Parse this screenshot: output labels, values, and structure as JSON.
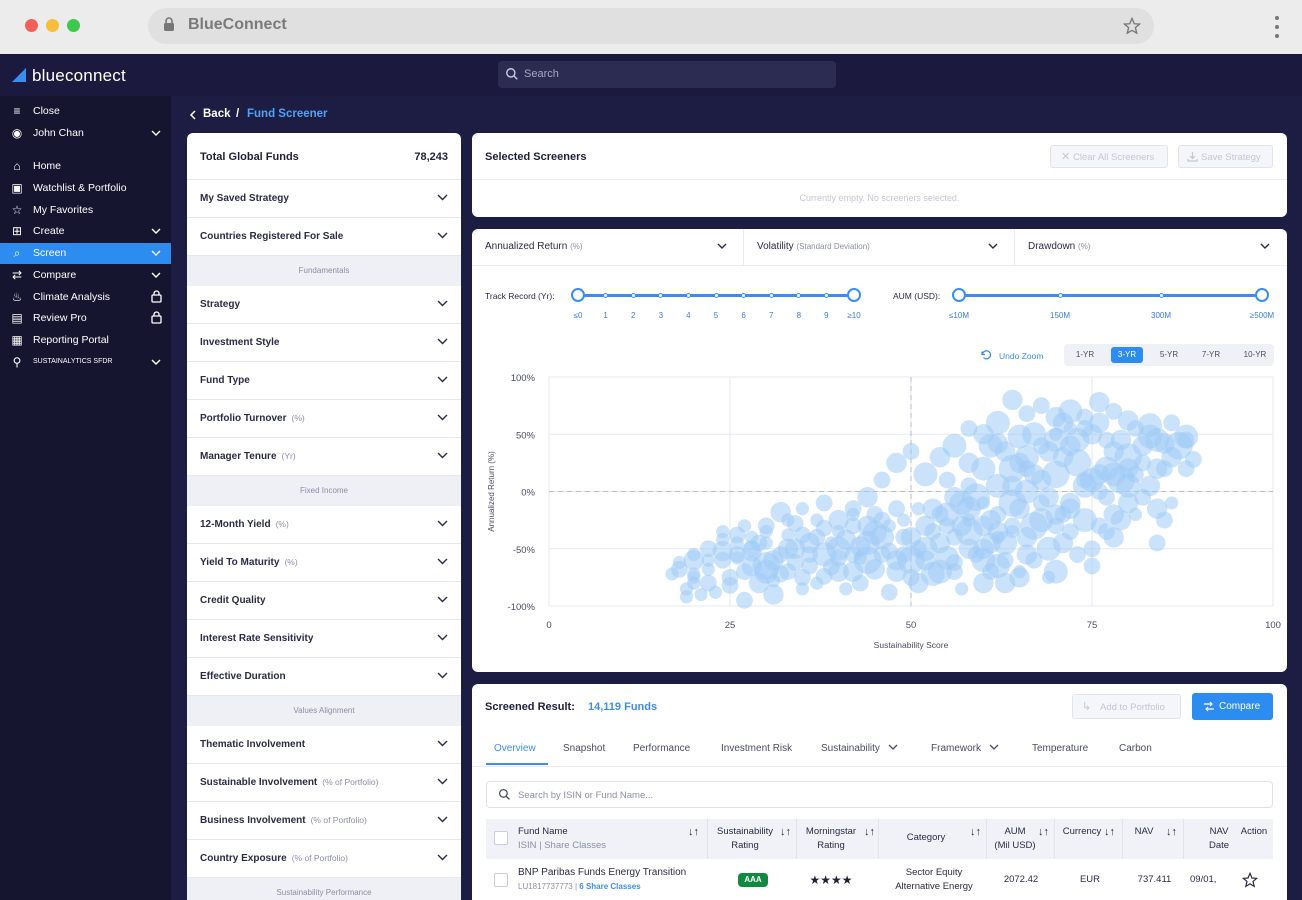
{
  "browser": {
    "title": "BlueConnect"
  },
  "app": {
    "logo": "blueconnect",
    "search_placeholder": "Search"
  },
  "sidebar": {
    "items": [
      {
        "label": "Close",
        "icon": "collapse-icon"
      },
      {
        "label": "John Chan",
        "icon": "user-icon"
      },
      {
        "label": "Home",
        "icon": "home-icon"
      },
      {
        "label": "Watchlist & Portfolio",
        "icon": "watchlist-icon"
      },
      {
        "label": "My Favorites",
        "icon": "star-icon"
      },
      {
        "label": "Create",
        "icon": "create-icon"
      },
      {
        "label": "Screen",
        "icon": "screen-search-icon"
      },
      {
        "label": "Compare",
        "icon": "compare-icon"
      },
      {
        "label": "Climate Analysis",
        "icon": "climate-icon"
      },
      {
        "label": "Review Pro",
        "icon": "review-icon"
      },
      {
        "label": "Reporting Portal",
        "icon": "report-icon"
      },
      {
        "label": "SUSTAINALYTICS SFDR",
        "icon": "badge-icon"
      }
    ]
  },
  "breadcrumb": {
    "back": "Back",
    "sep": "/",
    "current": "Fund Screener"
  },
  "filters": {
    "total_label": "Total Global Funds",
    "total_value": "78,243",
    "saved": "My Saved Strategy",
    "countries": "Countries Registered For Sale",
    "sections": {
      "fundamentals": "Fundamentals",
      "fixed_income": "Fixed Income",
      "values": "Values Alignment",
      "sustainability": "Sustainability Performance"
    },
    "strategy": "Strategy",
    "investment_style": "Investment Style",
    "fund_type": "Fund Type",
    "portfolio_turnover": "Portfolio Turnover",
    "portfolio_turnover_unit": "(%)",
    "manager_tenure": "Manager Tenure",
    "manager_tenure_unit": "(Yr)",
    "yield12": "12-Month Yield",
    "yield12_unit": "(%)",
    "ytm": "Yield To Maturity",
    "ytm_unit": "(%)",
    "credit_quality": "Credit Quality",
    "irs": "Interest Rate Sensitivity",
    "eff_duration": "Effective Duration",
    "thematic": "Thematic Involvement",
    "sustainable_inv": "Sustainable Involvement",
    "sustainable_inv_unit": "(% of Portfolio)",
    "business_inv": "Business Involvement",
    "business_inv_unit": "(% of Portfolio)",
    "country_exp": "Country Exposure",
    "country_exp_unit": "(% of Portfolio)"
  },
  "screeners": {
    "title": "Selected Screeners",
    "clear": "Clear All Screeners",
    "save": "Save Strategy",
    "empty": "Currently empty. No screeners selected."
  },
  "chart_panel": {
    "dd1": "Annualized Return",
    "dd1_unit": "(%)",
    "dd2": "Volatility",
    "dd2_unit": "(Standard Deviation)",
    "dd3": "Drawdown",
    "dd3_unit": "(%)",
    "track_label": "Track Record (Yr):",
    "track_ticks": [
      "≤0",
      "1",
      "2",
      "3",
      "4",
      "5",
      "6",
      "7",
      "8",
      "9",
      "≥10"
    ],
    "track_range": [
      0,
      10
    ],
    "aum_label": "AUM (USD):",
    "aum_ticks": [
      "≤10M",
      "150M",
      "300M",
      "≥500M"
    ],
    "aum_range": [
      0,
      3
    ],
    "undo_zoom": "Undo Zoom",
    "periods": [
      "1-YR",
      "3-YR",
      "5-YR",
      "7-YR",
      "10-YR"
    ],
    "period_active": "3-YR"
  },
  "chart_data": {
    "type": "scatter",
    "xlabel": "Sustainability Score",
    "ylabel": "Annualized Return (%)",
    "xlim": [
      0,
      100
    ],
    "ylim": [
      -100,
      100
    ],
    "x_ticks": [
      "0",
      "25",
      "50",
      "75",
      "100"
    ],
    "y_ticks": [
      "100%",
      "50%",
      "0%",
      "-50%",
      "-100%"
    ],
    "reference_lines": {
      "x": 50,
      "y": 0
    },
    "points": [
      [
        28,
        -52,
        4
      ],
      [
        30,
        -65,
        6
      ],
      [
        32,
        -72,
        3
      ],
      [
        29,
        -80,
        4
      ],
      [
        31,
        -90,
        4
      ],
      [
        26,
        -58,
        2
      ],
      [
        24,
        -60,
        3
      ],
      [
        22,
        -68,
        2
      ],
      [
        20,
        -75,
        2
      ],
      [
        18,
        -62,
        2
      ],
      [
        23,
        -88,
        2
      ],
      [
        27,
        -95,
        3
      ],
      [
        25,
        -82,
        3
      ],
      [
        33,
        -50,
        4
      ],
      [
        34,
        -62,
        3
      ],
      [
        35,
        -85,
        2
      ],
      [
        38,
        -74,
        3
      ],
      [
        36,
        -55,
        3
      ],
      [
        37,
        -40,
        3
      ],
      [
        40,
        -58,
        3
      ],
      [
        42,
        -70,
        4
      ],
      [
        44,
        -60,
        6
      ],
      [
        43,
        -48,
        4
      ],
      [
        45,
        -36,
        5
      ],
      [
        47,
        -52,
        3
      ],
      [
        46,
        -25,
        3
      ],
      [
        48,
        -70,
        4
      ],
      [
        49,
        -40,
        3
      ],
      [
        50,
        -60,
        6
      ],
      [
        51,
        -50,
        3
      ],
      [
        52,
        -30,
        4
      ],
      [
        53,
        -72,
        5
      ],
      [
        54,
        -45,
        4
      ],
      [
        55,
        -20,
        5
      ],
      [
        56,
        -62,
        3
      ],
      [
        57,
        -10,
        5
      ],
      [
        58,
        -35,
        6
      ],
      [
        59,
        -55,
        3
      ],
      [
        60,
        -80,
        4
      ],
      [
        61,
        -25,
        4
      ],
      [
        62,
        5,
        5
      ],
      [
        63,
        -45,
        5
      ],
      [
        64,
        20,
        6
      ],
      [
        65,
        -15,
        4
      ],
      [
        66,
        30,
        5
      ],
      [
        67,
        -30,
        6
      ],
      [
        68,
        10,
        4
      ],
      [
        69,
        -50,
        5
      ],
      [
        70,
        45,
        5
      ],
      [
        71,
        -20,
        3
      ],
      [
        72,
        40,
        4
      ],
      [
        73,
        25,
        6
      ],
      [
        74,
        55,
        3
      ],
      [
        75,
        10,
        5
      ],
      [
        76,
        60,
        4
      ],
      [
        77,
        -5,
        3
      ],
      [
        78,
        35,
        4
      ],
      [
        80,
        30,
        6
      ],
      [
        82,
        40,
        4
      ],
      [
        84,
        45,
        5
      ],
      [
        85,
        20,
        3
      ],
      [
        80,
        -10,
        4
      ],
      [
        78,
        -40,
        4
      ],
      [
        75,
        -65,
        3
      ],
      [
        70,
        -70,
        5
      ],
      [
        65,
        -75,
        4
      ],
      [
        62,
        -65,
        5
      ],
      [
        60,
        -50,
        4
      ],
      [
        58,
        25,
        4
      ],
      [
        56,
        40,
        5
      ],
      [
        55,
        10,
        3
      ],
      [
        54,
        30,
        4
      ],
      [
        52,
        15,
        5
      ],
      [
        50,
        35,
        3
      ],
      [
        48,
        25,
        4
      ],
      [
        46,
        10,
        3
      ],
      [
        44,
        -5,
        4
      ],
      [
        42,
        -15,
        3
      ],
      [
        40,
        -25,
        4
      ],
      [
        38,
        -32,
        3
      ],
      [
        36,
        -45,
        4
      ],
      [
        34,
        -28,
        3
      ],
      [
        32,
        -18,
        4
      ],
      [
        30,
        -30,
        3
      ],
      [
        28,
        -50,
        3
      ],
      [
        26,
        -38,
        3
      ],
      [
        25,
        -75,
        3
      ],
      [
        22,
        -80,
        3
      ],
      [
        20,
        -55,
        2
      ],
      [
        21,
        -90,
        2
      ],
      [
        19,
        -85,
        2
      ],
      [
        17,
        -72,
        2
      ],
      [
        24,
        -42,
        2
      ],
      [
        27,
        -70,
        3
      ],
      [
        29,
        -45,
        3
      ],
      [
        31,
        -60,
        4
      ],
      [
        33,
        -70,
        3
      ],
      [
        35,
        -38,
        3
      ],
      [
        37,
        -80,
        2
      ],
      [
        39,
        -66,
        3
      ],
      [
        41,
        -42,
        4
      ],
      [
        43,
        -80,
        3
      ],
      [
        45,
        -68,
        4
      ],
      [
        47,
        -88,
        3
      ],
      [
        49,
        -55,
        3
      ],
      [
        51,
        -80,
        4
      ],
      [
        53,
        -15,
        4
      ],
      [
        55,
        -58,
        5
      ],
      [
        57,
        -30,
        4
      ],
      [
        59,
        -5,
        6
      ],
      [
        61,
        -45,
        4
      ],
      [
        63,
        -60,
        3
      ],
      [
        64,
        -10,
        6
      ],
      [
        66,
        -55,
        4
      ],
      [
        67,
        15,
        4
      ],
      [
        69,
        -5,
        4
      ],
      [
        70,
        15,
        6
      ],
      [
        71,
        60,
        4
      ],
      [
        72,
        -35,
        3
      ],
      [
        74,
        -25,
        5
      ],
      [
        76,
        -30,
        3
      ],
      [
        77,
        20,
        5
      ],
      [
        79,
        10,
        6
      ],
      [
        81,
        15,
        3
      ],
      [
        83,
        5,
        4
      ],
      [
        85,
        -25,
        3
      ],
      [
        68,
        75,
        3
      ],
      [
        66,
        68,
        3
      ],
      [
        64,
        80,
        4
      ],
      [
        62,
        60,
        5
      ],
      [
        60,
        50,
        4
      ],
      [
        58,
        55,
        3
      ],
      [
        61,
        40,
        5
      ],
      [
        63,
        35,
        4
      ],
      [
        65,
        25,
        4
      ],
      [
        67,
        50,
        5
      ],
      [
        69,
        35,
        4
      ],
      [
        71,
        30,
        4
      ],
      [
        73,
        45,
        5
      ],
      [
        75,
        50,
        4
      ],
      [
        77,
        45,
        3
      ],
      [
        79,
        45,
        4
      ],
      [
        81,
        55,
        3
      ],
      [
        83,
        48,
        5
      ],
      [
        85,
        42,
        4
      ],
      [
        87,
        40,
        6
      ],
      [
        88,
        45,
        3
      ],
      [
        88,
        20,
        3
      ],
      [
        86,
        30,
        4
      ],
      [
        84,
        20,
        4
      ],
      [
        82,
        25,
        3
      ],
      [
        80,
        20,
        4
      ],
      [
        78,
        15,
        5
      ],
      [
        76,
        15,
        4
      ],
      [
        74,
        10,
        3
      ],
      [
        72,
        -15,
        4
      ],
      [
        70,
        -20,
        4
      ],
      [
        68,
        -10,
        3
      ],
      [
        66,
        0,
        5
      ],
      [
        64,
        5,
        4
      ],
      [
        62,
        -20,
        3
      ],
      [
        60,
        -30,
        4
      ],
      [
        58,
        -15,
        5
      ],
      [
        56,
        -5,
        4
      ],
      [
        54,
        -20,
        3
      ],
      [
        52,
        -50,
        5
      ],
      [
        50,
        -40,
        4
      ],
      [
        48,
        -15,
        3
      ],
      [
        46,
        -40,
        5
      ],
      [
        44,
        -30,
        4
      ],
      [
        42,
        -30,
        3
      ],
      [
        40,
        -50,
        5
      ],
      [
        38,
        -10,
        3
      ],
      [
        20,
        -60,
        4
      ],
      [
        22,
        -50,
        3
      ],
      [
        24,
        -52,
        4
      ],
      [
        26,
        -55,
        3
      ],
      [
        28,
        -65,
        4
      ],
      [
        30,
        -70,
        5
      ],
      [
        32,
        -55,
        3
      ],
      [
        34,
        -50,
        4
      ],
      [
        36,
        -65,
        3
      ],
      [
        38,
        -55,
        5
      ],
      [
        40,
        -70,
        4
      ],
      [
        42,
        -55,
        3
      ],
      [
        44,
        -45,
        5
      ],
      [
        46,
        -55,
        3
      ],
      [
        48,
        -60,
        4
      ],
      [
        50,
        -75,
        3
      ],
      [
        52,
        -60,
        4
      ],
      [
        54,
        -70,
        5
      ],
      [
        56,
        -40,
        3
      ],
      [
        58,
        -50,
        4
      ],
      [
        60,
        -60,
        5
      ],
      [
        62,
        -35,
        4
      ],
      [
        64,
        -30,
        3
      ],
      [
        66,
        -40,
        4
      ],
      [
        68,
        -25,
        5
      ],
      [
        70,
        -30,
        3
      ],
      [
        72,
        -10,
        4
      ],
      [
        74,
        5,
        5
      ],
      [
        76,
        0,
        3
      ],
      [
        78,
        -20,
        4
      ],
      [
        80,
        5,
        5
      ],
      [
        82,
        -5,
        3
      ],
      [
        84,
        -15,
        4
      ],
      [
        70,
        65,
        4
      ],
      [
        72,
        70,
        5
      ],
      [
        74,
        65,
        3
      ],
      [
        76,
        78,
        4
      ],
      [
        78,
        70,
        3
      ],
      [
        80,
        62,
        4
      ],
      [
        83,
        58,
        5
      ],
      [
        65,
        48,
        5
      ],
      [
        62,
        42,
        4
      ],
      [
        60,
        20,
        5
      ],
      [
        58,
        5,
        3
      ],
      [
        56,
        -70,
        3
      ],
      [
        63,
        -80,
        4
      ],
      [
        67,
        -60,
        3
      ],
      [
        71,
        -45,
        4
      ],
      [
        75,
        -50,
        3
      ],
      [
        79,
        -25,
        4
      ],
      [
        86,
        60,
        3
      ],
      [
        88,
        48,
        5
      ],
      [
        89,
        28,
        3
      ],
      [
        40,
        -35,
        2
      ],
      [
        42,
        -20,
        2
      ],
      [
        27,
        -30,
        2
      ],
      [
        20,
        -72,
        2
      ],
      [
        18,
        -68,
        3
      ],
      [
        30,
        -45,
        2
      ],
      [
        33,
        -38,
        2
      ],
      [
        35,
        -75,
        3
      ],
      [
        45,
        -20,
        3
      ],
      [
        57,
        -85,
        2
      ],
      [
        61,
        -70,
        3
      ],
      [
        65,
        -70,
        2
      ],
      [
        69,
        -75,
        2
      ],
      [
        73,
        -55,
        3
      ],
      [
        77,
        -35,
        3
      ],
      [
        81,
        -20,
        2
      ],
      [
        84,
        -45,
        3
      ],
      [
        86,
        -10,
        2
      ],
      [
        70,
        50,
        2
      ],
      [
        72,
        55,
        2
      ],
      [
        68,
        40,
        3
      ],
      [
        66,
        20,
        3
      ],
      [
        64,
        -35,
        2
      ],
      [
        62,
        -40,
        2
      ],
      [
        60,
        -10,
        2
      ],
      [
        58,
        -25,
        2
      ],
      [
        55,
        -30,
        3
      ],
      [
        53,
        -35,
        3
      ],
      [
        51,
        -15,
        2
      ],
      [
        49,
        -25,
        2
      ],
      [
        47,
        -30,
        2
      ],
      [
        43,
        -58,
        2
      ],
      [
        41,
        -85,
        2
      ],
      [
        39,
        -45,
        2
      ],
      [
        37,
        -25,
        2
      ],
      [
        35,
        -15,
        2
      ],
      [
        33,
        -25,
        2
      ],
      [
        30,
        -35,
        2
      ],
      [
        28,
        -40,
        2
      ],
      [
        26,
        -45,
        2
      ],
      [
        24,
        -35,
        2
      ],
      [
        22,
        -60,
        2
      ],
      [
        20,
        -80,
        2
      ],
      [
        19,
        -92,
        2
      ],
      [
        31,
        -78,
        2
      ]
    ]
  },
  "results": {
    "label": "Screened Result:",
    "count": "14,119 Funds",
    "add": "Add to Portfolio",
    "compare": "Compare",
    "tabs": [
      "Overview",
      "Snapshot",
      "Performance",
      "Investment Risk",
      "Sustainability",
      "Framework",
      "Temperature",
      "Carbon"
    ],
    "tab_active": "Overview",
    "search_placeholder": "Search by ISIN or Fund Name...",
    "headers": {
      "fund_name": "Fund Name",
      "fund_sub": "ISIN | Share Classes",
      "sust": "Sustainability",
      "sust2": "Rating",
      "ms": "Morningstar",
      "ms2": "Rating",
      "cat": "Category",
      "aum": "AUM",
      "aum2": "(Mil USD)",
      "cur": "Currency",
      "nav": "NAV",
      "navdate": "NAV",
      "navdate2": "Date",
      "action": "Action"
    },
    "rows": [
      {
        "name": "BNP Paribas Funds Energy Transition",
        "isin": "LU1817737773",
        "classes": "6 Share Classes",
        "rating": "AAA",
        "stars": "★★★★",
        "cat1": "Sector Equity",
        "cat2": "Alternative Energy",
        "aum": "2072.42",
        "cur": "EUR",
        "nav": "737.411",
        "date": "09/01,"
      }
    ]
  },
  "colors": {
    "accent": "#3b8ef0",
    "nav_bg": "#1b1a3e",
    "sidebar_bg": "#16152f",
    "active": "#2d8cf0",
    "bubble": "#9ecbf5"
  }
}
